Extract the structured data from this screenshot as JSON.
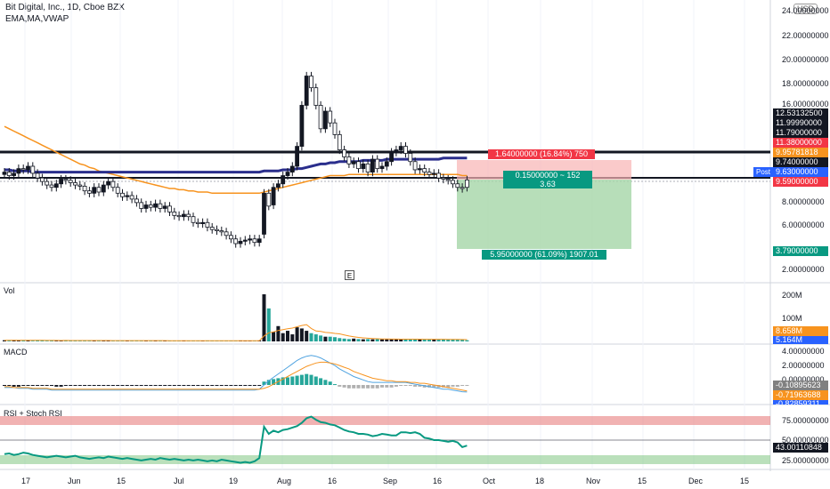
{
  "header": {
    "title": "Bit Digital, Inc., 1D, Cboe BZX",
    "indicators": "EMA,MA,VWAP"
  },
  "currency": "USD",
  "event_marker": "E",
  "panes": {
    "vol": "Vol",
    "macd": "MACD",
    "rsi": "RSI + Stoch RSI"
  },
  "price_axis": [
    "24.00000000",
    "22.00000000",
    "20.00000000",
    "18.00000000",
    "16.00000000",
    "8.00000000",
    "6.00000000",
    "2.00000000"
  ],
  "price_tags": [
    {
      "text": "12.53132500",
      "bg": "#131722",
      "fg": "#ffffff",
      "price": 12.53
    },
    {
      "text": "11.99990000",
      "bg": "#131722",
      "fg": "#ffffff",
      "price": 12.0
    },
    {
      "text": "11.79000000",
      "bg": "#131722",
      "fg": "#ffffff",
      "price": 11.79
    },
    {
      "text": "11.38000000",
      "bg": "#f23645",
      "fg": "#ffffff",
      "price": 11.38
    },
    {
      "text": "9.95781818",
      "bg": "#f7931e",
      "fg": "#ffffff",
      "price": 10.48
    },
    {
      "text": "9.74000000",
      "bg": "#131722",
      "fg": "#ffffff",
      "price": 9.95
    },
    {
      "text": "9.63000000",
      "bg": "#2962ff",
      "fg": "#ffffff",
      "price": 9.63
    },
    {
      "text": "9.59000000",
      "bg": "#f23645",
      "fg": "#ffffff",
      "price": 9.59
    },
    {
      "text": "3.79000000",
      "bg": "#089981",
      "fg": "#ffffff",
      "price": 3.79
    }
  ],
  "post_label": "Post",
  "position_tool": {
    "stop": "1.64000000 (16.84%) 750",
    "entry_line1": "0.15000000 ~ 152",
    "entry_line2": "3.63",
    "target": "5.95000000 (61.09%) 1907.01"
  },
  "vol_axis": [
    "200M",
    "100M"
  ],
  "vol_tags": [
    {
      "text": "8.658M",
      "bg": "#f7931e"
    },
    {
      "text": "5.164M",
      "bg": "#2962ff"
    }
  ],
  "macd_axis": [
    "4.00000000",
    "2.00000000",
    "0.00000000"
  ],
  "macd_tags": [
    {
      "text": "-0.10895623",
      "bg": "#808080"
    },
    {
      "text": "-0.71963688",
      "bg": "#f7931e"
    },
    {
      "text": "-0.82859311",
      "bg": "#2962ff"
    }
  ],
  "rsi_axis": [
    "75.00000000",
    "50.00000000",
    "25.00000000"
  ],
  "rsi_tag": {
    "text": "43.00110848",
    "bg": "#131722"
  },
  "x_axis": [
    "17",
    "Jun",
    "15",
    "Jul",
    "19",
    "Aug",
    "16",
    "Sep",
    "16",
    "Oct",
    "18",
    "Nov",
    "15",
    "Dec",
    "15"
  ],
  "chart_data": {
    "type": "candlestick",
    "price_range": [
      2,
      24
    ],
    "close": [
      10.1,
      10.3,
      10.0,
      10.2,
      10.6,
      10.5,
      10.8,
      10.2,
      9.8,
      9.5,
      9.2,
      9.0,
      9.3,
      9.7,
      9.6,
      9.4,
      9.2,
      9.1,
      8.7,
      8.5,
      9.0,
      8.6,
      9.2,
      9.5,
      9.0,
      8.5,
      8.2,
      8.3,
      8.0,
      7.7,
      7.2,
      7.5,
      7.3,
      7.6,
      7.2,
      7.4,
      6.9,
      6.6,
      6.5,
      6.7,
      6.5,
      6.0,
      5.9,
      6.0,
      5.6,
      5.4,
      5.3,
      5.2,
      4.9,
      4.6,
      4.2,
      4.4,
      4.5,
      4.6,
      4.3,
      5.0,
      8.5,
      7.5,
      9.0,
      9.3,
      10.0,
      10.3,
      10.8,
      12.5,
      16.0,
      18.5,
      17.5,
      16.0,
      14.0,
      15.5,
      14.5,
      13.5,
      12.2,
      11.6,
      11.0,
      11.2,
      10.6,
      11.0,
      10.3,
      11.4,
      10.6,
      10.8,
      11.2,
      12.0,
      12.2,
      12.5,
      11.9,
      11.2,
      10.5,
      10.6,
      10.3,
      10.1,
      10.2,
      9.8,
      9.7,
      9.6,
      9.3,
      9.0,
      9.63
    ],
    "open": [
      10.3,
      10.0,
      10.2,
      10.6,
      10.5,
      10.8,
      10.2,
      9.8,
      9.5,
      9.2,
      9.0,
      9.3,
      9.7,
      9.6,
      9.4,
      9.2,
      9.1,
      8.7,
      8.5,
      9.0,
      8.6,
      9.2,
      9.5,
      9.0,
      8.5,
      8.2,
      8.3,
      8.0,
      7.7,
      7.2,
      7.5,
      7.3,
      7.6,
      7.2,
      7.4,
      6.9,
      6.6,
      6.5,
      6.7,
      6.5,
      6.0,
      5.9,
      6.0,
      5.6,
      5.4,
      5.3,
      5.2,
      4.9,
      4.6,
      4.2,
      4.4,
      4.5,
      4.6,
      4.3,
      4.6,
      8.5,
      7.4,
      9.0,
      9.3,
      10.0,
      10.3,
      10.8,
      12.5,
      16.0,
      18.5,
      17.5,
      16.0,
      14.0,
      15.5,
      14.5,
      13.5,
      12.2,
      11.6,
      11.0,
      11.2,
      10.6,
      11.0,
      10.3,
      11.4,
      10.6,
      10.8,
      11.2,
      12.0,
      12.2,
      12.5,
      11.9,
      11.2,
      10.5,
      10.6,
      10.3,
      10.1,
      10.2,
      9.8,
      9.7,
      9.6,
      9.3,
      9.0,
      8.9,
      9.0
    ],
    "ema": [
      14.2,
      14.0,
      13.8,
      13.6,
      13.4,
      13.2,
      13.0,
      12.8,
      12.6,
      12.4,
      12.2,
      12.0,
      11.8,
      11.6,
      11.4,
      11.2,
      11.0,
      10.9,
      10.7,
      10.6,
      10.4,
      10.3,
      10.2,
      10.1,
      10.0,
      9.9,
      9.8,
      9.7,
      9.6,
      9.5,
      9.4,
      9.3,
      9.2,
      9.1,
      9.0,
      8.9,
      8.9,
      8.8,
      8.8,
      8.7,
      8.7,
      8.6,
      8.6,
      8.6,
      8.5,
      8.5,
      8.5,
      8.5,
      8.5,
      8.5,
      8.5,
      8.5,
      8.5,
      8.5,
      8.5,
      8.6,
      8.7,
      8.8,
      8.9,
      9.0,
      9.1,
      9.2,
      9.3,
      9.4,
      9.5,
      9.6,
      9.7,
      9.8,
      9.9,
      10.0,
      10.0,
      10.0,
      10.0,
      10.1,
      10.1,
      10.1,
      10.1,
      10.1,
      10.1,
      10.1,
      10.1,
      10.1,
      10.1,
      10.1,
      10.1,
      10.1,
      10.1,
      10.1,
      10.1,
      10.1,
      10.1,
      10.1,
      10.1,
      10.1,
      10.1,
      10.1,
      10.1,
      10.0,
      10.0
    ],
    "ma": [
      10.5,
      10.5,
      10.4,
      10.4,
      10.4,
      10.4,
      10.3,
      10.3,
      10.3,
      10.3,
      10.3,
      10.3,
      10.3,
      10.3,
      10.3,
      10.3,
      10.3,
      10.3,
      10.3,
      10.3,
      10.3,
      10.3,
      10.3,
      10.3,
      10.3,
      10.3,
      10.3,
      10.3,
      10.3,
      10.3,
      10.3,
      10.3,
      10.3,
      10.3,
      10.3,
      10.3,
      10.3,
      10.3,
      10.3,
      10.3,
      10.3,
      10.3,
      10.3,
      10.3,
      10.3,
      10.3,
      10.3,
      10.3,
      10.3,
      10.3,
      10.3,
      10.3,
      10.3,
      10.3,
      10.3,
      10.4,
      10.4,
      10.4,
      10.4,
      10.5,
      10.5,
      10.5,
      10.6,
      10.6,
      10.7,
      10.8,
      10.9,
      11.0,
      11.0,
      11.1,
      11.1,
      11.2,
      11.2,
      11.2,
      11.2,
      11.2,
      11.3,
      11.3,
      11.3,
      11.3,
      11.3,
      11.4,
      11.4,
      11.4,
      11.4,
      11.4,
      11.4,
      11.4,
      11.4,
      11.4,
      11.4,
      11.4,
      11.4,
      11.5,
      11.5,
      11.5,
      11.5,
      11.5,
      11.5
    ],
    "volume_m": [
      5,
      4,
      6,
      4,
      5,
      4,
      3,
      5,
      4,
      3,
      4,
      3,
      4,
      5,
      3,
      4,
      3,
      4,
      3,
      3,
      4,
      3,
      5,
      3,
      3,
      4,
      3,
      3,
      4,
      3,
      3,
      3,
      4,
      3,
      3,
      3,
      3,
      3,
      4,
      3,
      3,
      3,
      3,
      4,
      3,
      3,
      3,
      3,
      3,
      3,
      4,
      3,
      3,
      3,
      4,
      200,
      140,
      40,
      65,
      35,
      45,
      30,
      60,
      55,
      45,
      35,
      30,
      25,
      20,
      20,
      18,
      14,
      12,
      10,
      12,
      10,
      9,
      10,
      9,
      11,
      9,
      9,
      10,
      9,
      10,
      9,
      9,
      10,
      9,
      8,
      9,
      8,
      9,
      8,
      8,
      8,
      7,
      7,
      5
    ],
    "macd_hist": [
      -0.1,
      -0.1,
      -0.2,
      -0.2,
      -0.1,
      -0.1,
      -0.1,
      -0.1,
      -0.1,
      -0.1,
      -0.1,
      -0.2,
      -0.2,
      -0.1,
      -0.1,
      -0.1,
      -0.1,
      -0.1,
      -0.1,
      -0.1,
      -0.1,
      -0.1,
      -0.1,
      -0.1,
      -0.1,
      -0.1,
      -0.1,
      -0.1,
      -0.1,
      -0.1,
      -0.1,
      -0.1,
      -0.1,
      -0.1,
      -0.1,
      -0.1,
      -0.1,
      -0.1,
      -0.1,
      -0.1,
      -0.1,
      -0.1,
      -0.1,
      -0.1,
      -0.1,
      -0.1,
      -0.1,
      -0.1,
      -0.1,
      -0.1,
      -0.1,
      -0.1,
      -0.1,
      -0.1,
      -0.1,
      0.4,
      0.6,
      0.7,
      0.8,
      0.9,
      0.9,
      1.0,
      1.1,
      1.2,
      1.3,
      1.2,
      1.0,
      0.8,
      0.6,
      0.4,
      0.1,
      -0.2,
      -0.3,
      -0.4,
      -0.4,
      -0.4,
      -0.4,
      -0.4,
      -0.4,
      -0.4,
      -0.3,
      -0.3,
      -0.3,
      -0.2,
      -0.1,
      -0.1,
      -0.1,
      -0.2,
      -0.2,
      -0.3,
      -0.3,
      -0.3,
      -0.3,
      -0.3,
      -0.3,
      -0.2,
      -0.2,
      -0.1,
      -0.1
    ],
    "macd_line": [
      -0.3,
      -0.3,
      -0.3,
      -0.4,
      -0.4,
      -0.4,
      -0.5,
      -0.5,
      -0.5,
      -0.5,
      -0.6,
      -0.6,
      -0.6,
      -0.6,
      -0.6,
      -0.6,
      -0.6,
      -0.6,
      -0.6,
      -0.6,
      -0.6,
      -0.6,
      -0.6,
      -0.6,
      -0.6,
      -0.6,
      -0.6,
      -0.6,
      -0.6,
      -0.6,
      -0.6,
      -0.6,
      -0.6,
      -0.6,
      -0.6,
      -0.6,
      -0.6,
      -0.6,
      -0.6,
      -0.6,
      -0.6,
      -0.6,
      -0.6,
      -0.6,
      -0.6,
      -0.6,
      -0.6,
      -0.6,
      -0.6,
      -0.6,
      -0.6,
      -0.6,
      -0.6,
      -0.6,
      -0.5,
      0.0,
      0.5,
      0.9,
      1.3,
      1.7,
      2.1,
      2.5,
      2.9,
      3.2,
      3.4,
      3.5,
      3.4,
      3.2,
      2.9,
      2.6,
      2.3,
      1.9,
      1.6,
      1.3,
      1.0,
      0.8,
      0.6,
      0.4,
      0.3,
      0.3,
      0.3,
      0.3,
      0.3,
      0.3,
      0.3,
      0.3,
      0.2,
      0.1,
      0.0,
      -0.1,
      -0.2,
      -0.3,
      -0.4,
      -0.5,
      -0.5,
      -0.6,
      -0.7,
      -0.8,
      -0.83
    ],
    "macd_signal": [
      -0.2,
      -0.2,
      -0.3,
      -0.3,
      -0.3,
      -0.3,
      -0.4,
      -0.4,
      -0.4,
      -0.4,
      -0.5,
      -0.5,
      -0.5,
      -0.5,
      -0.5,
      -0.5,
      -0.5,
      -0.5,
      -0.5,
      -0.5,
      -0.5,
      -0.5,
      -0.5,
      -0.5,
      -0.5,
      -0.5,
      -0.5,
      -0.5,
      -0.5,
      -0.5,
      -0.5,
      -0.5,
      -0.5,
      -0.5,
      -0.5,
      -0.5,
      -0.5,
      -0.5,
      -0.5,
      -0.5,
      -0.5,
      -0.5,
      -0.5,
      -0.5,
      -0.5,
      -0.5,
      -0.5,
      -0.5,
      -0.5,
      -0.5,
      -0.5,
      -0.5,
      -0.5,
      -0.5,
      -0.5,
      -0.4,
      -0.2,
      0.1,
      0.4,
      0.7,
      1.0,
      1.3,
      1.6,
      1.9,
      2.2,
      2.4,
      2.6,
      2.7,
      2.7,
      2.6,
      2.5,
      2.3,
      2.1,
      1.9,
      1.6,
      1.4,
      1.2,
      1.0,
      0.8,
      0.7,
      0.6,
      0.5,
      0.5,
      0.4,
      0.4,
      0.4,
      0.3,
      0.3,
      0.2,
      0.2,
      0.1,
      0.0,
      -0.1,
      -0.2,
      -0.3,
      -0.4,
      -0.5,
      -0.6,
      -0.72
    ],
    "rsi": [
      32,
      33,
      31,
      32,
      34,
      33,
      31,
      30,
      29,
      28,
      29,
      30,
      29,
      28,
      29,
      30,
      28,
      27,
      26,
      27,
      28,
      27,
      29,
      28,
      27,
      26,
      27,
      26,
      25,
      24,
      25,
      26,
      25,
      27,
      26,
      25,
      26,
      25,
      24,
      25,
      24,
      25,
      24,
      23,
      24,
      23,
      25,
      24,
      23,
      22,
      21,
      22,
      21,
      23,
      27,
      67,
      58,
      62,
      60,
      63,
      64,
      66,
      68,
      72,
      78,
      80,
      76,
      73,
      72,
      70,
      69,
      66,
      63,
      61,
      60,
      58,
      58,
      57,
      55,
      56,
      58,
      57,
      56,
      56,
      60,
      60,
      59,
      60,
      58,
      53,
      52,
      50,
      50,
      49,
      48,
      49,
      47,
      41,
      43
    ]
  }
}
